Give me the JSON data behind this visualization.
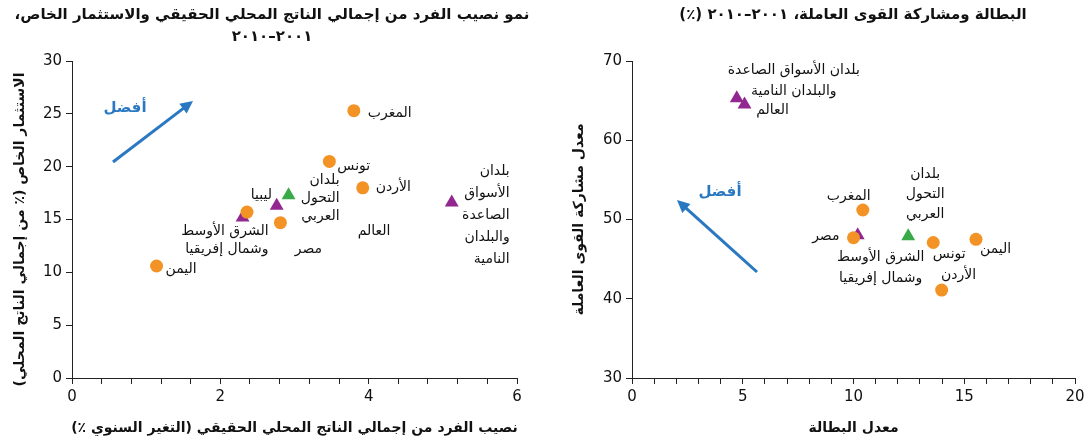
{
  "chart_data": [
    {
      "type": "scatter",
      "title": "نمو نصيب الفرد من إجمالي الناتج المحلي الحقيقي والاستثمار الخاص، ٢٠٠١–٢٠١٠",
      "xlabel": "نصيب الفرد من إجمالي الناتج المحلي الحقيقي (التغير السنوي ٪)",
      "ylabel": "الاستثمار الخاص (٪ من إجمالي الناتج المحلي)",
      "xlim": [
        0,
        6
      ],
      "xticks": [
        0,
        {
          "value": 0.4,
          "label": null
        },
        {
          "value": 0.8,
          "label": null
        },
        {
          "value": 1.2,
          "label": null
        },
        {
          "value": 1.6,
          "label": null
        },
        2,
        {
          "value": 2.4,
          "label": null
        },
        {
          "value": 2.8,
          "label": null
        },
        {
          "value": 3.2,
          "label": null
        },
        {
          "value": 3.6,
          "label": null
        },
        4,
        {
          "value": 4.4,
          "label": null
        },
        {
          "value": 4.8,
          "label": null
        },
        {
          "value": 5.2,
          "label": null
        },
        {
          "value": 5.6,
          "label": null
        },
        6
      ],
      "ylim": [
        0,
        30
      ],
      "yticks": [
        0,
        5,
        10,
        15,
        20,
        25,
        30
      ],
      "grid": false,
      "legend": false,
      "series": [
        {
          "color": "#f39325",
          "marker": "circle",
          "x": [
            3.8,
            3.47,
            3.92,
            2.36,
            2.81,
            1.14
          ],
          "values": [
            25.3,
            20.5,
            18.0,
            15.7,
            14.7,
            10.6
          ]
        },
        {
          "color": "#3aaa48",
          "marker": "triangle",
          "x": [
            2.92
          ],
          "values": [
            17.3
          ]
        },
        {
          "color": "#92278f",
          "marker": "triangle",
          "x": [
            2.3,
            2.76,
            5.12
          ],
          "values": [
            15.2,
            16.3,
            16.6
          ]
        }
      ],
      "annotations": [
        {
          "text": "المغرب",
          "x": 3.8,
          "y": 25.3
        },
        {
          "text": "تونس",
          "x": 3.47,
          "y": 20.5
        },
        {
          "text": "الأردن",
          "x": 3.92,
          "y": 18.0
        },
        {
          "text": "ليبيا",
          "x": 2.36,
          "y": 15.7
        },
        {
          "text": "بلدان\nالتحول\nالعربي",
          "x": 2.92,
          "y": 17.3
        },
        {
          "text": "الشرق الأوسط\nوشمال إفريقيا",
          "x": 2.3,
          "y": 15.2
        },
        {
          "text": "مصر",
          "x": 2.81,
          "y": 14.7
        },
        {
          "text": "اليمن",
          "x": 1.14,
          "y": 10.6
        },
        "العالم",
        {
          "text": "بلدان\nالأسواق\nالصاعدة\nوالبلدان\nالنامية",
          "x": 5.12,
          "y": 16.6
        },
        "أفضل"
      ]
    },
    {
      "type": "scatter",
      "title": "البطالة ومشاركة القوى العاملة، ٢٠٠١–٢٠١٠ (٪)",
      "xlabel": "معدل البطالة",
      "ylabel": "معدل مشاركة القوى العاملة",
      "xlim": [
        0,
        20
      ],
      "xticks": [
        0,
        {
          "value": 1,
          "label": null
        },
        {
          "value": 2,
          "label": null
        },
        {
          "value": 3,
          "label": null
        },
        {
          "value": 4,
          "label": null
        },
        5,
        {
          "value": 6,
          "label": null
        },
        {
          "value": 7,
          "label": null
        },
        {
          "value": 8,
          "label": null
        },
        {
          "value": 9,
          "label": null
        },
        10,
        {
          "value": 11,
          "label": null
        },
        {
          "value": 12,
          "label": null
        },
        {
          "value": 13,
          "label": null
        },
        {
          "value": 14,
          "label": null
        },
        15,
        {
          "value": 16,
          "label": null
        },
        {
          "value": 17,
          "label": null
        },
        {
          "value": 18,
          "label": null
        },
        {
          "value": 19,
          "label": null
        },
        20
      ],
      "ylim": [
        30,
        70
      ],
      "yticks": [
        30,
        40,
        50,
        60,
        70
      ],
      "grid": false,
      "legend": false,
      "series": [
        {
          "color": "#f39325",
          "marker": "circle",
          "x": [
            10.42,
            10.0,
            13.6,
            15.53,
            13.98
          ],
          "values": [
            51.2,
            47.7,
            47.1,
            47.5,
            41.1
          ]
        },
        {
          "color": "#3aaa48",
          "marker": "triangle",
          "x": [
            12.47
          ],
          "values": [
            47.9
          ]
        },
        {
          "color": "#92278f",
          "marker": "triangle",
          "x": [
            4.73,
            5.08,
            10.19
          ],
          "values": [
            65.3,
            64.5,
            48.0
          ]
        }
      ],
      "annotations": [
        {
          "text": "بلدان الأسواق الصاعدة\nوالبلدان النامية",
          "x": 4.73,
          "y": 65.3
        },
        {
          "text": "العالم",
          "x": 5.08,
          "y": 64.5
        },
        {
          "text": "المغرب",
          "x": 10.42,
          "y": 51.2
        },
        {
          "text": "مصر",
          "x": 10.0,
          "y": 47.7
        },
        {
          "text": "الشرق الأوسط\nوشمال إفريقيا",
          "x": 10.19,
          "y": 48.0
        },
        {
          "text": "بلدان\nالتحول\nالعربي",
          "x": 12.47,
          "y": 47.9
        },
        {
          "text": "تونس",
          "x": 13.6,
          "y": 47.1
        },
        {
          "text": "اليمن",
          "x": 15.53,
          "y": 47.5
        },
        {
          "text": "الأردن",
          "x": 13.98,
          "y": 41.1
        },
        "أفضل"
      ]
    }
  ]
}
